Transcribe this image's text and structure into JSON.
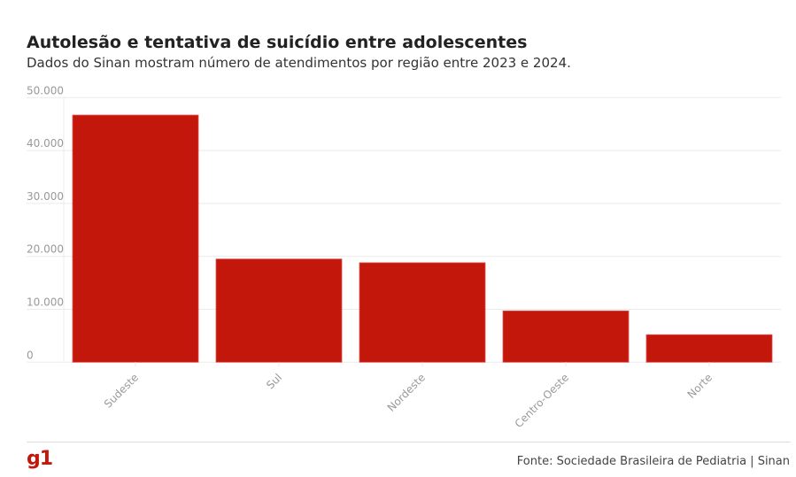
{
  "header": {
    "title": "Autolesão e tentativa de suicídio entre adolescentes",
    "subtitle": "Dados do Sinan mostram número de atendimentos por região entre 2023 e 2024."
  },
  "footer": {
    "logo": "g1",
    "source": "Fonte: Sociedade Brasileira de Pediatria | Sinan"
  },
  "colors": {
    "bar": "#c4170c",
    "grid": "#ebebeb",
    "tick": "#999999"
  },
  "chart_data": {
    "type": "bar",
    "title": "Autolesão e tentativa de suicídio entre adolescentes",
    "xlabel": "",
    "ylabel": "",
    "categories": [
      "Sudeste",
      "Sul",
      "Nordeste",
      "Centro-Oeste",
      "Norte"
    ],
    "values": [
      46700,
      19500,
      18800,
      9700,
      5200
    ],
    "ylim": [
      0,
      50000
    ],
    "yticks": [
      0,
      10000,
      20000,
      30000,
      40000,
      50000
    ],
    "ytick_labels": [
      "0",
      "10.000",
      "20.000",
      "30.000",
      "40.000",
      "50.000"
    ],
    "grid": true,
    "legend": "none"
  }
}
